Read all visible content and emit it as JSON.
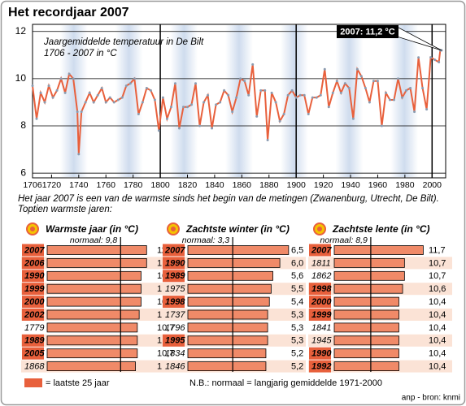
{
  "title": "Het recordjaar 2007",
  "intro": [
    "Het jaar 2007 is een van de warmste sinds het begin van de metingen (Zwanenburg, Utrecht, De Bilt).",
    "Toptien warmste jaren:"
  ],
  "legend": "= laatste 25 jaar",
  "note": "N.B.: normaal = langjarig gemiddelde 1971-2000",
  "source": "anp - bron: knmi",
  "chart_data": [
    {
      "type": "line",
      "subtitle": [
        "Jaargemiddelde temperatuur in De Bilt",
        "1706 - 2007 in °C"
      ],
      "annotation": "2007: 11,2 °C",
      "color": "#e8603c",
      "x": [
        1706,
        1709,
        1712,
        1715,
        1718,
        1721,
        1724,
        1727,
        1730,
        1733,
        1736,
        1739,
        1740,
        1742,
        1745,
        1748,
        1751,
        1754,
        1757,
        1760,
        1763,
        1766,
        1769,
        1772,
        1775,
        1778,
        1781,
        1784,
        1787,
        1790,
        1793,
        1796,
        1799,
        1802,
        1805,
        1808,
        1811,
        1814,
        1817,
        1820,
        1823,
        1826,
        1829,
        1832,
        1835,
        1838,
        1841,
        1844,
        1847,
        1850,
        1853,
        1856,
        1859,
        1862,
        1865,
        1868,
        1871,
        1874,
        1877,
        1879,
        1882,
        1885,
        1888,
        1891,
        1894,
        1897,
        1900,
        1903,
        1906,
        1909,
        1912,
        1915,
        1918,
        1921,
        1924,
        1927,
        1930,
        1933,
        1936,
        1939,
        1942,
        1945,
        1948,
        1951,
        1954,
        1957,
        1960,
        1963,
        1966,
        1969,
        1972,
        1975,
        1978,
        1981,
        1984,
        1987,
        1990,
        1993,
        1996,
        1999,
        2002,
        2005,
        2006,
        2007
      ],
      "values": [
        9.7,
        8.3,
        9.4,
        9.0,
        9.7,
        9.2,
        9.5,
        10.0,
        9.4,
        10.2,
        10.0,
        8.6,
        6.8,
        8.6,
        9.0,
        9.4,
        9.0,
        9.3,
        9.6,
        9.0,
        9.2,
        9.0,
        9.1,
        9.2,
        9.7,
        9.8,
        10.0,
        8.5,
        9.0,
        9.6,
        9.5,
        9.1,
        7.8,
        9.2,
        8.3,
        8.8,
        9.8,
        7.9,
        8.8,
        8.8,
        8.9,
        9.8,
        8.0,
        9.0,
        9.3,
        7.9,
        8.9,
        9.0,
        9.5,
        9.3,
        8.6,
        9.2,
        10.0,
        9.9,
        9.3,
        10.6,
        8.4,
        9.5,
        9.5,
        7.4,
        9.4,
        9.0,
        8.2,
        8.5,
        9.3,
        9.5,
        9.2,
        9.3,
        9.3,
        8.5,
        9.2,
        9.2,
        9.3,
        10.4,
        8.8,
        9.4,
        9.9,
        9.4,
        9.8,
        9.6,
        8.3,
        10.4,
        10.1,
        9.6,
        9.0,
        9.9,
        9.9,
        8.0,
        9.4,
        9.1,
        9.1,
        10.0,
        9.2,
        9.5,
        9.6,
        8.6,
        10.9,
        9.6,
        8.7,
        10.9,
        10.8,
        10.7,
        11.2,
        11.2
      ],
      "xlim": [
        1706,
        2010
      ],
      "xticks": [
        1706,
        1720,
        1740,
        1760,
        1780,
        1800,
        1820,
        1840,
        1860,
        1880,
        1900,
        1920,
        1940,
        1960,
        1980,
        2000
      ],
      "ylim": [
        5.8,
        12.3
      ],
      "yticks": [
        6,
        8,
        10,
        12
      ],
      "grid": true
    },
    {
      "type": "barh",
      "title": "Warmste jaar (in °C)",
      "normal": 9.8,
      "normal_label": "normaal: 9,8",
      "categories": [
        "2007",
        "2006",
        "1990",
        "1999",
        "2000",
        "2002",
        "1779",
        "1989",
        "2005",
        "1868"
      ],
      "values": [
        11.2,
        11.2,
        10.9,
        10.9,
        10.9,
        10.8,
        10.7,
        10.7,
        10.7,
        10.6
      ],
      "value_labels": [
        "11,2",
        "11,2",
        "10,9",
        "10,9",
        "10,9",
        "10,8",
        "10,7",
        "10,7",
        "10,7",
        "10,6"
      ],
      "highlight": [
        true,
        true,
        true,
        true,
        true,
        true,
        false,
        true,
        true,
        false
      ],
      "xlim": [
        5.85,
        11.45
      ],
      "color": "#f08a68",
      "highlight_color": "#e8603c"
    },
    {
      "type": "barh",
      "title": "Zachtste winter (in °C)",
      "normal": 3.3,
      "normal_label": "normaal: 3,3",
      "categories": [
        "2007",
        "1990",
        "1989",
        "1975",
        "1998",
        "1737",
        "1796",
        "1995",
        "1834",
        "1846"
      ],
      "values": [
        6.5,
        6.0,
        5.6,
        5.5,
        5.4,
        5.3,
        5.3,
        5.3,
        5.2,
        5.2
      ],
      "value_labels": [
        "6,5",
        "6,0",
        "5,6",
        "5,5",
        "5,4",
        "5,3",
        "5,3",
        "5,3",
        "5,2",
        "5,2"
      ],
      "highlight": [
        true,
        true,
        true,
        false,
        true,
        false,
        false,
        true,
        false,
        false
      ],
      "xlim": [
        0.73,
        6.6
      ],
      "color": "#f08a68",
      "highlight_color": "#e8603c"
    },
    {
      "type": "barh",
      "title": "Zachtste lente (in °C)",
      "normal": 8.9,
      "normal_label": "normaal: 8,9",
      "categories": [
        "2007",
        "1811",
        "1862",
        "1998",
        "2000",
        "1999",
        "1841",
        "1945",
        "1990",
        "1992"
      ],
      "values": [
        11.7,
        10.7,
        10.7,
        10.6,
        10.4,
        10.4,
        10.4,
        10.4,
        10.4,
        10.4
      ],
      "value_labels": [
        "11,7",
        "10,7",
        "10,7",
        "10,6",
        "10,4",
        "10,4",
        "10,4",
        "10,4",
        "10,4",
        "10,4"
      ],
      "highlight": [
        true,
        false,
        false,
        true,
        true,
        true,
        false,
        false,
        true,
        true
      ],
      "xlim": [
        6.95,
        11.9
      ],
      "color": "#f08a68",
      "highlight_color": "#e8603c"
    }
  ]
}
